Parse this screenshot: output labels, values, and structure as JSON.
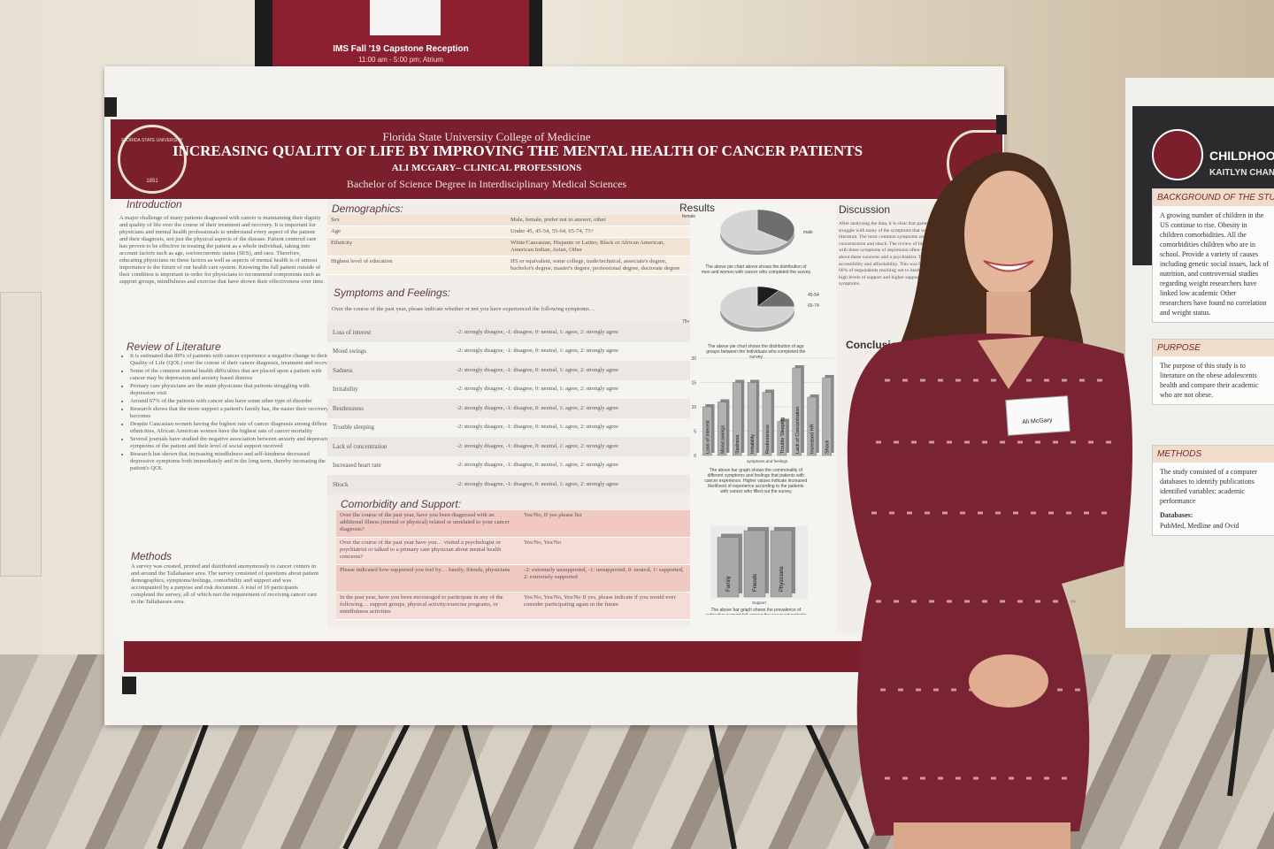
{
  "sign": {
    "title": "IMS Fall '19 Capstone Reception",
    "time": "11:00 am - 5:00 pm; Atrium"
  },
  "poster": {
    "institution": "Florida State University College of Medicine",
    "title": "INCREASING QUALITY OF LIFE BY IMPROVING THE MENTAL HEALTH OF CANCER PATIENTS",
    "author": "ALI MCGARY– CLINICAL PROFESSIONS",
    "degree": "Bachelor of Science Degree in Interdisciplinary Medical Sciences",
    "seal": "FLORIDA STATE UNIVERSITY",
    "seal_year": "1851",
    "introduction": {
      "heading": "Introduction",
      "text": "A major challenge of many patients diagnosed with cancer is maintaining their dignity and quality of life over the course of their treatment and recovery. It is important for physicians and mental health professionals to understand every aspect of the patient and their diagnosis, not just the physical aspects of the disease. Patient centered care has proven to be effective in treating the patient as a whole individual, taking into account factors such as age, socioeconomic status (SES), and race. Therefore, educating physicians on these factors as well as aspects of mental health is of utmost importance to the future of our health care system. Knowing the full patient outside of their condition is important in order for physicians to recommend components such as support groups, mindfulness and exercise that have shown their effectiveness over time."
    },
    "review": {
      "heading": "Review of Literature",
      "items": [
        "It is estimated that 80% of patients with cancer experience a negative change to their Quality of Life (QOL) over the course of their cancer diagnosis, treatment and recovery",
        "Some of the common mental health difficulties that are placed upon a patient with cancer may be depression and anxiety based distress",
        "Primary care physicians are the main physicians that patients struggling with depression visit",
        "Around 67% of the patients with cancer also have some other type of disorder",
        "Research shows that the more support a patient's family has, the easier their recovery becomes",
        "Despite Caucasian women having the highest rate of cancer diagnosis among different ethnicities, African American women have the highest rate of cancer mortality",
        "Several journals have studied the negative association between anxiety and depressive symptoms of the patient and their level of social support received",
        "Research has shown that increasing mindfulness and self-kindness decreased depressive symptoms both immediately and in the long term, thereby increasing the patient's QOL"
      ]
    },
    "methods": {
      "heading": "Methods",
      "text": "A survey was created, printed and distributed anonymously to cancer centers in and around the Tallahassee area. The survey consisted of questions about patient demographics, symptoms/feelings, comorbidity and support and was accompanied by a purpose and risk document. A total of 10 participants completed the survey, all of which met the requirement of receiving cancer care in the Tallahassee area."
    },
    "demographics": {
      "heading": "Demographics:",
      "rows": [
        [
          "Sex",
          "Male, female, prefer not to answer, other"
        ],
        [
          "Age",
          "Under 45, 45-54, 55-64, 65-74, 75+"
        ],
        [
          "Ethnicity",
          "White/Caucasian, Hispanic or Latino, Black or African American, American Indian, Asian, Other"
        ],
        [
          "Highest level of education",
          "HS or equivalent, some college, trade/technical, associate's degree, bachelor's degree, master's degree, professional degree, doctorate degree"
        ]
      ]
    },
    "symptoms": {
      "heading": "Symptoms and Feelings:",
      "prompt": "Over the course of the past year, please indicate whether or not you have experienced the following symptoms…",
      "scale": "-2: strongly disagree, -1: disagree, 0: neutral, 1: agree, 2: strongly agree",
      "items": [
        "Loss of interest",
        "Mood swings",
        "Sadness",
        "Irritability",
        "Restlessness",
        "Trouble sleeping",
        "Lack of concentration",
        "Increased heart rate",
        "Shock"
      ]
    },
    "comorbidity": {
      "heading": "Comorbidity and Support:",
      "rows": [
        [
          "Over the course of the past year, have you been diagnosed with an additional illness (mental or physical) related or unrelated to your cancer diagnosis?",
          "Yes/No, If yes please list"
        ],
        [
          "Over the course of the past year have you… visited a psychologist or psychiatrist or talked to a primary care physician about mental health concerns?",
          "Yes/No, Yes/No"
        ],
        [
          "Please indicated how supported you feel by… family, friends, physicians",
          "-2: extremely unsupported, -1: unsupported, 0: neutral, 1: supported, 2: extremely supported"
        ],
        [
          "In the past year, have you been encouraged to participate in any of the following… support groups, physical activity/exercise programs, or mindfulness activities",
          "Yes/No, Yes/No, Yes/No If yes, please indicate if you would ever consider participating again in the future"
        ]
      ]
    },
    "results": {
      "heading": "Results",
      "pie1": {
        "labels": [
          "female",
          "male"
        ],
        "values": [
          35,
          65
        ],
        "colors": [
          "#6e6e6e",
          "#d4d4d4"
        ],
        "caption": "The above pie chart above shows the distribution of men and women with cancer who completed the survey."
      },
      "pie2": {
        "labels": [
          "45-54",
          "65-74",
          "75+"
        ],
        "values": [
          10,
          15,
          75
        ],
        "colors": [
          "#1e1e1e",
          "#6e6e6e",
          "#d4d4d4"
        ],
        "caption": "The above pie chart shows the distribution of age groups between the individuals who completed the survey."
      },
      "bar": {
        "categories": [
          "Loss of Interest",
          "Mood swings",
          "Sadness",
          "Irritability",
          "Restlessness",
          "Trouble Sleeping",
          "Lack of Concentration",
          "Increased HR",
          "Shock"
        ],
        "values": [
          10,
          11,
          15,
          15,
          13,
          7,
          18,
          12,
          16
        ],
        "ylim": [
          0,
          20
        ],
        "yticks": [
          0,
          5,
          10,
          15,
          20
        ],
        "xlabel": "symptoms and feelings",
        "color": "#b0b0b0",
        "caption": "The above bar graph shows the commonality of different symptoms and feelings that patients with cancer experience. Higher values indicate increased likelihood of experience according to the patients with cancer who filled out the survey."
      },
      "bar2": {
        "categories": [
          "Family",
          "Friends",
          "Physicians"
        ],
        "values": [
          9,
          10,
          10
        ],
        "xlabel": "Support",
        "color": "#a8a8a8",
        "caption": "The above bar graph shows the prevalence of subjective support felt among the surveyed patients with cancer. Higher values indicate increased prevalence of support according to the patients with cancer who filled out the survey."
      }
    },
    "discussion": {
      "heading": "Discussion",
      "text": "After analyzing the data, it is clear that patients with cancer do in fact struggle with many of the symptoms that were predicted by the review of literature. The most common symptoms recorded include sadness, lack of concentration and shock. The review of literature shows that patients dealing with these symptoms of depression often visit their primary care physician about these concerns and a psychiatrist. This is most likely due to accessibility and affordability. This was further supported by the data, with 66% of respondents reaching out to health concerns. The survey data showed high levels of support and higher support shows increased negative symptoms."
    },
    "conclusion": {
      "heading": "Conclusion"
    }
  },
  "badge": {
    "name": "Ali McGary"
  },
  "right_poster": {
    "title": "CHILDHOOD",
    "author": "KAITLYN CHANG –",
    "sections": [
      {
        "heading": "BACKGROUND OF THE STUDY",
        "text": "A growing number of children in the US continue to rise. Obesity in children comorbidities. All the comorbidities children who are in school. Provide a variety of causes including genetic social issues, lack of nutrition, and controversial studies regarding weight researchers have linked low academic Other researchers have found no correlation and weight status."
      },
      {
        "heading": "PURPOSE",
        "text": "The purpose of this study is to literature on the obese adolescents health and compare their academic who are not obese."
      },
      {
        "heading": "METHODS",
        "text": "The study consisted of a computer databases to identify publications identified variables: academic performance",
        "sub": "Databases:",
        "sub_text": "PubMed, Medline and Ovid"
      }
    ]
  }
}
